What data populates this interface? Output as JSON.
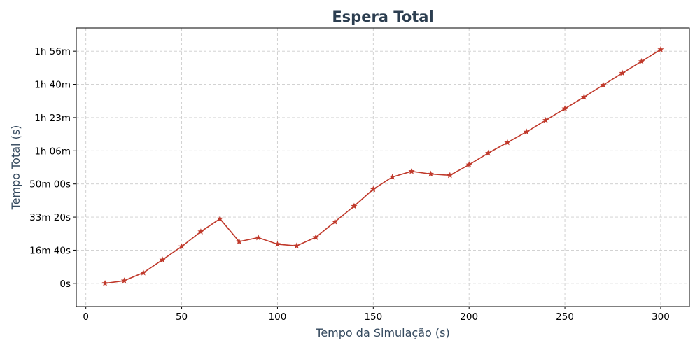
{
  "chart_data": {
    "type": "line",
    "title": "Espera Total",
    "xlabel": "Tempo da Simulação (s)",
    "ylabel": "Tempo Total (s)",
    "xlim": [
      -5,
      315
    ],
    "ylim": [
      -700,
      7700
    ],
    "grid": true,
    "x_ticks": [
      {
        "value": 0,
        "label": "0"
      },
      {
        "value": 50,
        "label": "50"
      },
      {
        "value": 100,
        "label": "100"
      },
      {
        "value": 150,
        "label": "150"
      },
      {
        "value": 200,
        "label": "200"
      },
      {
        "value": 250,
        "label": "250"
      },
      {
        "value": 300,
        "label": "300"
      }
    ],
    "y_ticks": [
      {
        "value": 0,
        "label": "0s"
      },
      {
        "value": 1000,
        "label": "16m 40s"
      },
      {
        "value": 2000,
        "label": "33m 20s"
      },
      {
        "value": 3000,
        "label": "50m 00s"
      },
      {
        "value": 4000,
        "label": "1h 06m"
      },
      {
        "value": 5000,
        "label": "1h 23m"
      },
      {
        "value": 6000,
        "label": "1h 40m"
      },
      {
        "value": 7000,
        "label": "1h 56m"
      }
    ],
    "series": [
      {
        "color": "#c0392b",
        "marker": "star",
        "x": [
          10,
          20,
          30,
          40,
          50,
          60,
          70,
          80,
          90,
          100,
          110,
          120,
          130,
          140,
          150,
          160,
          170,
          180,
          190,
          200,
          210,
          220,
          230,
          240,
          250,
          260,
          270,
          280,
          290,
          300
        ],
        "y": [
          0,
          80,
          320,
          710,
          1110,
          1560,
          1950,
          1260,
          1380,
          1180,
          1130,
          1390,
          1860,
          2330,
          2840,
          3210,
          3380,
          3300,
          3260,
          3580,
          3930,
          4250,
          4570,
          4920,
          5270,
          5620,
          5980,
          6340,
          6690,
          7050
        ]
      }
    ]
  }
}
